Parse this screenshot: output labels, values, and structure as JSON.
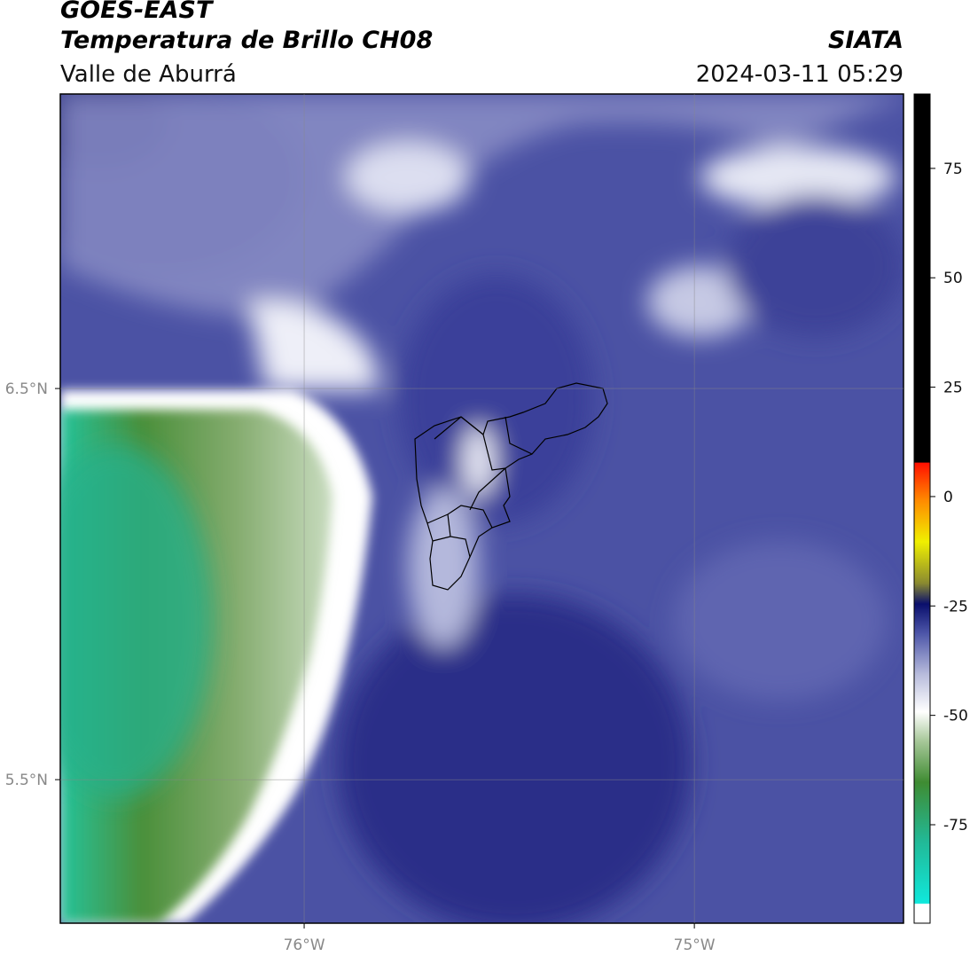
{
  "header": {
    "title": "GOES-EAST",
    "subtitle": "Temperatura de Brillo CH08",
    "region": "Valle de Aburrá",
    "source": "SIATA",
    "datetime": "2024-03-11 05:29"
  },
  "map": {
    "xlim": [
      -76.625,
      -74.464
    ],
    "ylim": [
      5.133,
      7.253
    ],
    "xticks": [
      {
        "value": -76,
        "label": "76°W"
      },
      {
        "value": -75,
        "label": "75°W"
      }
    ],
    "yticks": [
      {
        "value": 6.5,
        "label": "6.5°N"
      },
      {
        "value": 5.5,
        "label": "5.5°N"
      }
    ],
    "grid": true
  },
  "colorbar": {
    "clim": [
      -97.5,
      92
    ],
    "ticks": [
      75,
      50,
      25,
      0,
      -25,
      -50,
      -75
    ]
  }
}
